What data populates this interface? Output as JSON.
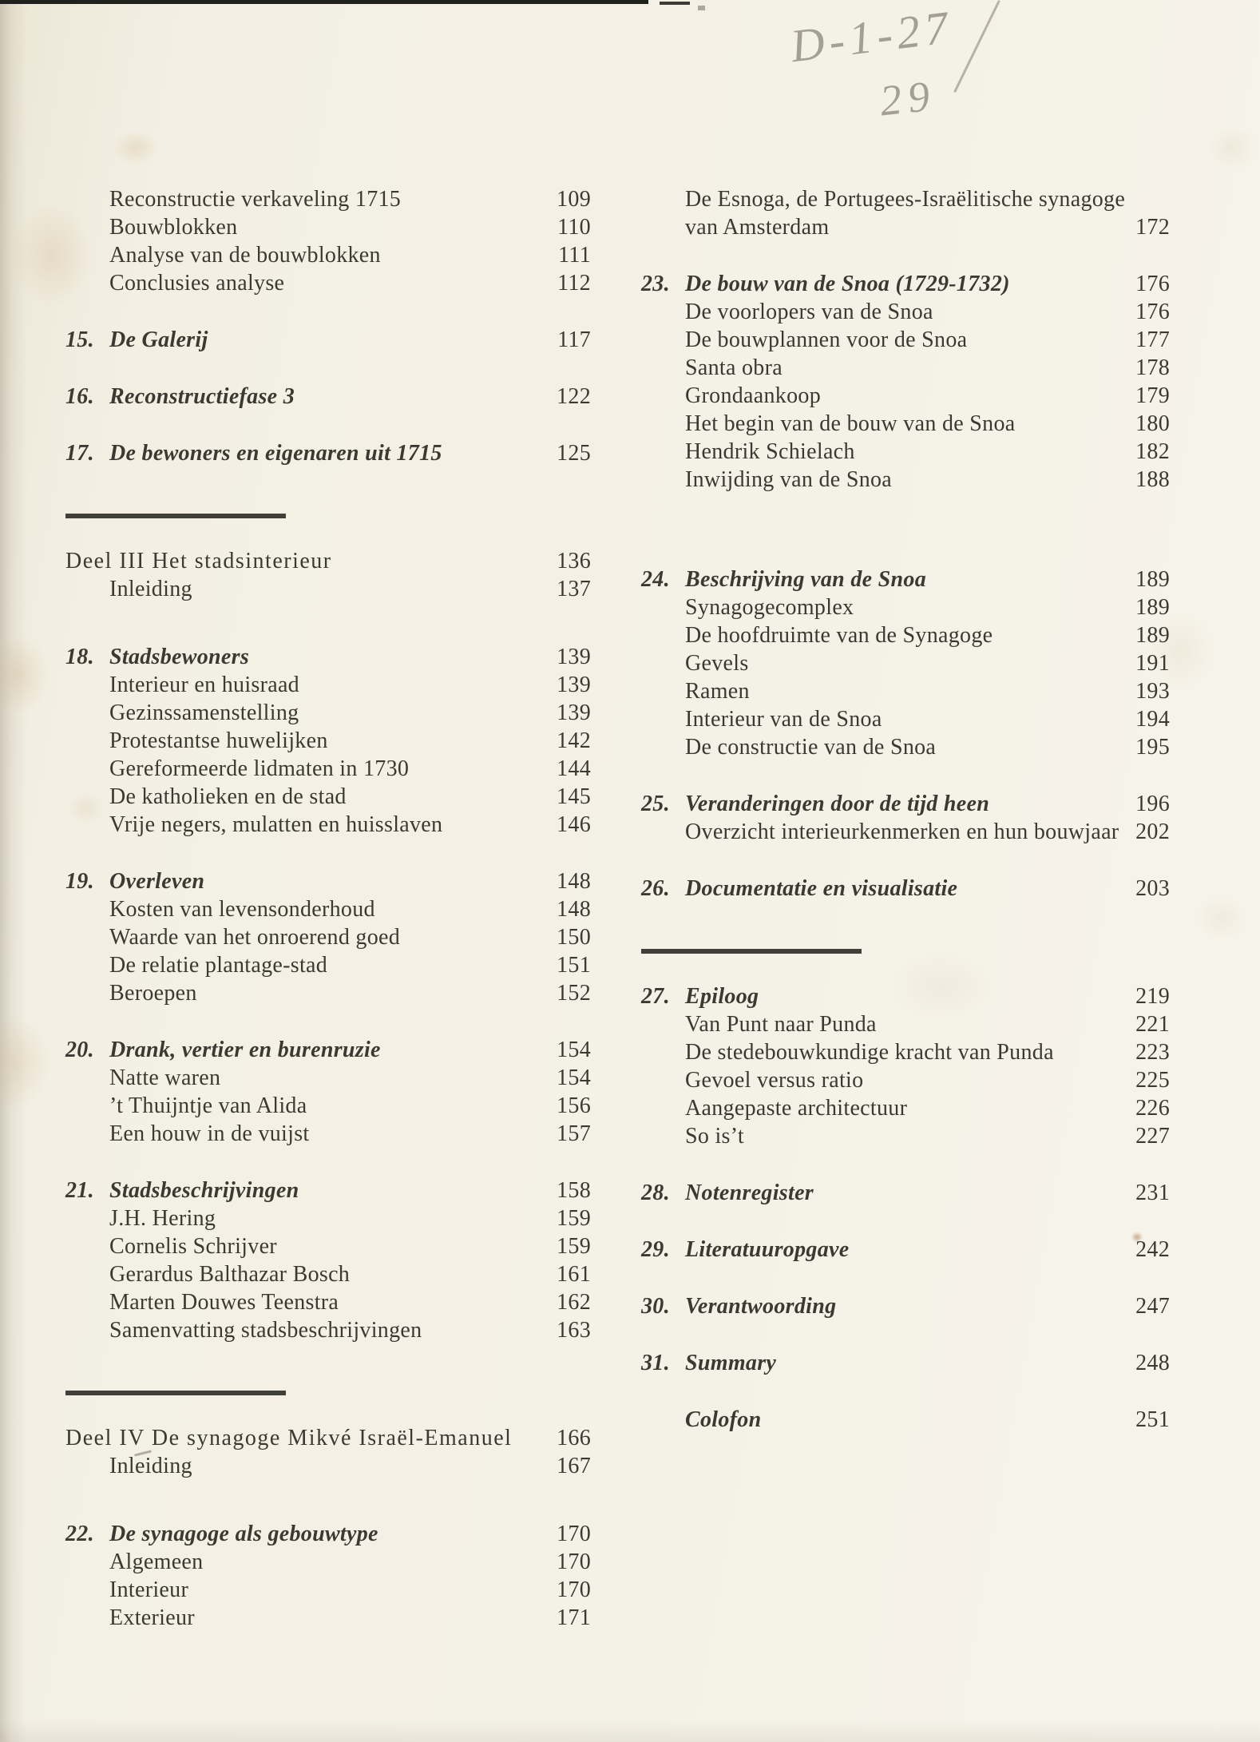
{
  "handwriting": {
    "line1": "D-1-27",
    "line2": "29"
  },
  "columns": {
    "left": {
      "blocks": [
        {
          "type": "group",
          "lines": [
            {
              "label": "Reconstructie verkaveling 1715",
              "page": "109",
              "style": "sub"
            },
            {
              "label": "Bouwblokken",
              "page": "110",
              "style": "sub"
            },
            {
              "label": "Analyse van de bouwblokken",
              "page": "111",
              "style": "sub"
            },
            {
              "label": "Conclusies analyse",
              "page": "112",
              "style": "sub"
            }
          ]
        },
        {
          "type": "group",
          "lines": [
            {
              "num": "15.",
              "label": "De Galerij",
              "page": "117",
              "style": "chapter"
            }
          ]
        },
        {
          "type": "group",
          "lines": [
            {
              "num": "16.",
              "label": "Reconstructiefase 3",
              "page": "122",
              "style": "chapter"
            }
          ]
        },
        {
          "type": "group",
          "lines": [
            {
              "num": "17.",
              "label": "De bewoners en eigenaren uit 1715",
              "page": "125",
              "style": "chapter"
            }
          ]
        },
        {
          "type": "rule"
        },
        {
          "type": "part",
          "lines": [
            {
              "label": "Deel III Het stadsinterieur",
              "page": "136",
              "style": "part"
            },
            {
              "label": "Inleiding",
              "page": "137",
              "style": "sub"
            }
          ]
        },
        {
          "type": "group",
          "lines": [
            {
              "num": "18.",
              "label": "Stadsbewoners",
              "page": "139",
              "style": "chapter"
            },
            {
              "label": "Interieur en huisraad",
              "page": "139",
              "style": "sub"
            },
            {
              "label": "Gezinssamenstelling",
              "page": "139",
              "style": "sub"
            },
            {
              "label": "Protestantse huwelijken",
              "page": "142",
              "style": "sub"
            },
            {
              "label": "Gereformeerde lidmaten in 1730",
              "page": "144",
              "style": "sub"
            },
            {
              "label": "De katholieken en de stad",
              "page": "145",
              "style": "sub"
            },
            {
              "label": "Vrije negers, mulatten en huisslaven",
              "page": "146",
              "style": "sub"
            }
          ]
        },
        {
          "type": "group",
          "lines": [
            {
              "num": "19.",
              "label": "Overleven",
              "page": "148",
              "style": "chapter"
            },
            {
              "label": "Kosten van levensonderhoud",
              "page": "148",
              "style": "sub"
            },
            {
              "label": "Waarde van het onroerend goed",
              "page": "150",
              "style": "sub"
            },
            {
              "label": "De relatie plantage-stad",
              "page": "151",
              "style": "sub"
            },
            {
              "label": "Beroepen",
              "page": "152",
              "style": "sub"
            }
          ]
        },
        {
          "type": "group",
          "lines": [
            {
              "num": "20.",
              "label": "Drank, vertier en burenruzie",
              "page": "154",
              "style": "chapter"
            },
            {
              "label": "Natte waren",
              "page": "154",
              "style": "sub"
            },
            {
              "label": "’t Thuijntje van Alida",
              "page": "156",
              "style": "sub"
            },
            {
              "label": "Een houw in de vuijst",
              "page": "157",
              "style": "sub"
            }
          ]
        },
        {
          "type": "group",
          "lines": [
            {
              "num": "21.",
              "label": "Stadsbeschrijvingen",
              "page": "158",
              "style": "chapter"
            },
            {
              "label": "J.H. Hering",
              "page": "159",
              "style": "sub"
            },
            {
              "label": "Cornelis Schrijver",
              "page": "159",
              "style": "sub"
            },
            {
              "label": "Gerardus Balthazar Bosch",
              "page": "161",
              "style": "sub"
            },
            {
              "label": "Marten Douwes Teenstra",
              "page": "162",
              "style": "sub"
            },
            {
              "label": "Samenvatting stadsbeschrijvingen",
              "page": "163",
              "style": "sub"
            }
          ]
        },
        {
          "type": "rule"
        },
        {
          "type": "part",
          "lines": [
            {
              "label": "Deel IV De synagoge Mikvé Israël-Emanuel",
              "page": "166",
              "style": "part"
            },
            {
              "label": "Inleiding",
              "page": "167",
              "style": "sub"
            }
          ]
        },
        {
          "type": "group",
          "lines": [
            {
              "num": "22.",
              "label": "De synagoge als gebouwtype",
              "page": "170",
              "style": "chapter"
            },
            {
              "label": "Algemeen",
              "page": "170",
              "style": "sub"
            },
            {
              "label": "Interieur",
              "page": "170",
              "style": "sub"
            },
            {
              "label": "Exterieur",
              "page": "171",
              "style": "sub"
            }
          ]
        }
      ]
    },
    "right": {
      "blocks": [
        {
          "type": "group",
          "lines": [
            {
              "label": "De Esnoga, de Portugees-Israëlitische synagoge",
              "page": "",
              "style": "sub"
            },
            {
              "label": "van Amsterdam",
              "page": "172",
              "style": "sub"
            }
          ]
        },
        {
          "type": "group",
          "lines": [
            {
              "num": "23.",
              "label": "De bouw van de Snoa (1729-1732)",
              "page": "176",
              "style": "chapter"
            },
            {
              "label": "De voorlopers van de Snoa",
              "page": "176",
              "style": "sub"
            },
            {
              "label": "De bouwplannen voor de Snoa",
              "page": "177",
              "style": "sub"
            },
            {
              "label": "Santa obra",
              "page": "178",
              "style": "sub"
            },
            {
              "label": "Grondaankoop",
              "page": "179",
              "style": "sub"
            },
            {
              "label": "Het begin van de bouw van de Snoa",
              "page": "180",
              "style": "sub"
            },
            {
              "label": "Hendrik Schielach",
              "page": "182",
              "style": "sub"
            },
            {
              "label": "Inwijding van de Snoa",
              "page": "188",
              "style": "sub"
            }
          ]
        },
        {
          "type": "group",
          "space": "large",
          "lines": [
            {
              "num": "24.",
              "label": "Beschrijving van de Snoa",
              "page": "189",
              "style": "chapter"
            },
            {
              "label": "Synagogecomplex",
              "page": "189",
              "style": "sub"
            },
            {
              "label": "De hoofdruimte van de Synagoge",
              "page": "189",
              "style": "sub"
            },
            {
              "label": "Gevels",
              "page": "191",
              "style": "sub"
            },
            {
              "label": "Ramen",
              "page": "193",
              "style": "sub"
            },
            {
              "label": "Interieur van de Snoa",
              "page": "194",
              "style": "sub"
            },
            {
              "label": "De constructie van de Snoa",
              "page": "195",
              "style": "sub"
            }
          ]
        },
        {
          "type": "group",
          "lines": [
            {
              "num": "25.",
              "label": "Veranderingen door de tijd heen",
              "page": "196",
              "style": "chapter"
            },
            {
              "label": "Overzicht interieurkenmerken en hun bouwjaar",
              "page": "202",
              "style": "sub"
            }
          ]
        },
        {
          "type": "group",
          "lines": [
            {
              "num": "26.",
              "label": "Documentatie en visualisatie",
              "page": "203",
              "style": "chapter"
            }
          ]
        },
        {
          "type": "rule"
        },
        {
          "type": "group",
          "lines": [
            {
              "num": "27.",
              "label": "Epiloog",
              "page": "219",
              "style": "chapter"
            },
            {
              "label": "Van Punt naar Punda",
              "page": "221",
              "style": "sub"
            },
            {
              "label": "De stedebouwkundige kracht van Punda",
              "page": "223",
              "style": "sub"
            },
            {
              "label": "Gevoel versus ratio",
              "page": "225",
              "style": "sub"
            },
            {
              "label": "Aangepaste architectuur",
              "page": "226",
              "style": "sub"
            },
            {
              "label": "So is’t",
              "page": "227",
              "style": "sub"
            }
          ]
        },
        {
          "type": "group",
          "lines": [
            {
              "num": "28.",
              "label": "Notenregister",
              "page": "231",
              "style": "chapter"
            }
          ]
        },
        {
          "type": "group",
          "lines": [
            {
              "num": "29.",
              "label": "Literatuuropgave",
              "page": "242",
              "style": "chapter"
            }
          ]
        },
        {
          "type": "group",
          "lines": [
            {
              "num": "30.",
              "label": "Verantwoording",
              "page": "247",
              "style": "chapter"
            }
          ]
        },
        {
          "type": "group",
          "lines": [
            {
              "num": "31.",
              "label": "Summary",
              "page": "248",
              "style": "chapter"
            }
          ]
        },
        {
          "type": "group",
          "lines": [
            {
              "label": "Colofon",
              "page": "251",
              "style": "chapter"
            }
          ]
        }
      ]
    }
  }
}
